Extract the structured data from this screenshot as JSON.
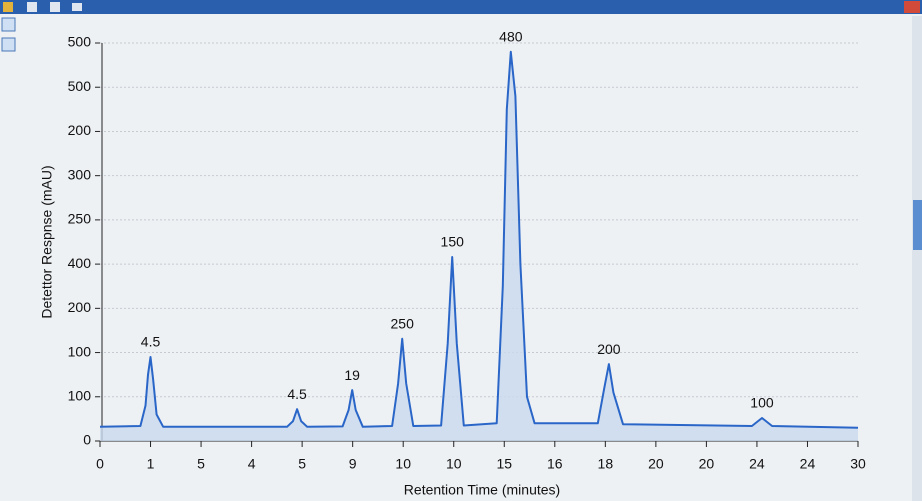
{
  "chart_data": {
    "type": "line",
    "xlabel": "Retention Time (minutes)",
    "ylabel": "Detettor Respnse (mAU)",
    "x": [
      0,
      0.8,
      0.9,
      0.95,
      1.0,
      1.05,
      1.12,
      1.25,
      3.7,
      3.82,
      3.9,
      3.98,
      4.1,
      4.8,
      4.92,
      4.99,
      5.06,
      5.2,
      5.78,
      5.9,
      5.98,
      6.06,
      6.2,
      6.75,
      6.88,
      6.97,
      7.06,
      7.2,
      7.85,
      7.97,
      8.05,
      8.13,
      8.22,
      8.32,
      8.45,
      8.6,
      9.85,
      9.98,
      10.07,
      10.16,
      10.35,
      12.9,
      13.1,
      13.3,
      15
    ],
    "series": [
      {
        "color": "#2a66c8",
        "fill": "#c9d9ee",
        "values": [
          0.32,
          0.34,
          0.8,
          1.5,
          1.9,
          1.4,
          0.6,
          0.32,
          0.32,
          0.45,
          0.72,
          0.45,
          0.32,
          0.33,
          0.7,
          1.15,
          0.7,
          0.32,
          0.34,
          1.3,
          2.31,
          1.3,
          0.34,
          0.35,
          2.2,
          4.16,
          2.2,
          0.35,
          0.4,
          3.5,
          7.5,
          8.8,
          7.8,
          4,
          1,
          0.4,
          0.4,
          1.2,
          1.74,
          1.1,
          0.38,
          0.34,
          0.52,
          0.34,
          0.3
        ]
      }
    ],
    "annotations": [
      {
        "text": "4.5",
        "x": 1.0,
        "y": 1.9
      },
      {
        "text": "4.5",
        "x": 3.9,
        "y": 0.72
      },
      {
        "text": "19",
        "x": 4.99,
        "y": 1.15
      },
      {
        "text": "250",
        "x": 5.98,
        "y": 2.31
      },
      {
        "text": "150",
        "x": 6.97,
        "y": 4.16
      },
      {
        "text": "480",
        "x": 8.13,
        "y": 8.8
      },
      {
        "text": "200",
        "x": 10.07,
        "y": 1.74
      },
      {
        "text": "100",
        "x": 13.1,
        "y": 0.52
      }
    ],
    "xlim": [
      0,
      15
    ],
    "xticks": [
      0,
      1,
      {
        "value": 2,
        "label": "5"
      },
      {
        "value": 3,
        "label": "4"
      },
      {
        "value": 4,
        "label": "5"
      },
      {
        "value": 5,
        "label": "9"
      },
      {
        "value": 6,
        "label": "10"
      },
      {
        "value": 7,
        "label": "10"
      },
      {
        "value": 8,
        "label": "15"
      },
      {
        "value": 9,
        "label": "16"
      },
      {
        "value": 10,
        "label": "18"
      },
      {
        "value": 11,
        "label": "20"
      },
      {
        "value": 12,
        "label": "20"
      },
      {
        "value": 13,
        "label": "24"
      },
      {
        "value": 14,
        "label": "24"
      },
      {
        "value": 15,
        "label": "30"
      }
    ],
    "ylim": [
      0,
      9
    ],
    "yticks": [
      0,
      {
        "value": 1,
        "label": "100"
      },
      {
        "value": 2,
        "label": "100"
      },
      {
        "value": 3,
        "label": "200"
      },
      {
        "value": 4,
        "label": "400"
      },
      {
        "value": 5,
        "label": "250"
      },
      {
        "value": 6,
        "label": "300"
      },
      {
        "value": 7,
        "label": "200"
      },
      {
        "value": 8,
        "label": "500"
      },
      {
        "value": 9,
        "label": "500"
      }
    ],
    "grid": true
  }
}
